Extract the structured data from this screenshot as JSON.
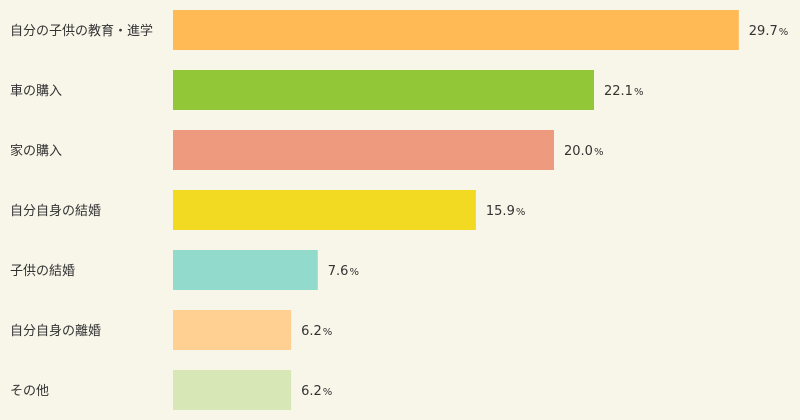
{
  "chart_data": {
    "type": "bar",
    "orientation": "horizontal",
    "categories": [
      "自分の子供の教育・進学",
      "車の購入",
      "家の購入",
      "自分自身の結婚",
      "子供の結婚",
      "自分自身の離婚",
      "その他"
    ],
    "values": [
      29.7,
      22.1,
      20.0,
      15.9,
      7.6,
      6.2,
      6.2
    ],
    "value_labels": [
      "29.7",
      "22.1",
      "20.0",
      "15.9",
      "7.6",
      "6.2",
      "6.2"
    ],
    "unit": "%",
    "colors": [
      "#ffb955",
      "#92c837",
      "#ee9a7e",
      "#f2da22",
      "#91dacc",
      "#ffd092",
      "#d7e7b5"
    ],
    "xlim": [
      0,
      30
    ],
    "grid": false,
    "legend": "none"
  }
}
